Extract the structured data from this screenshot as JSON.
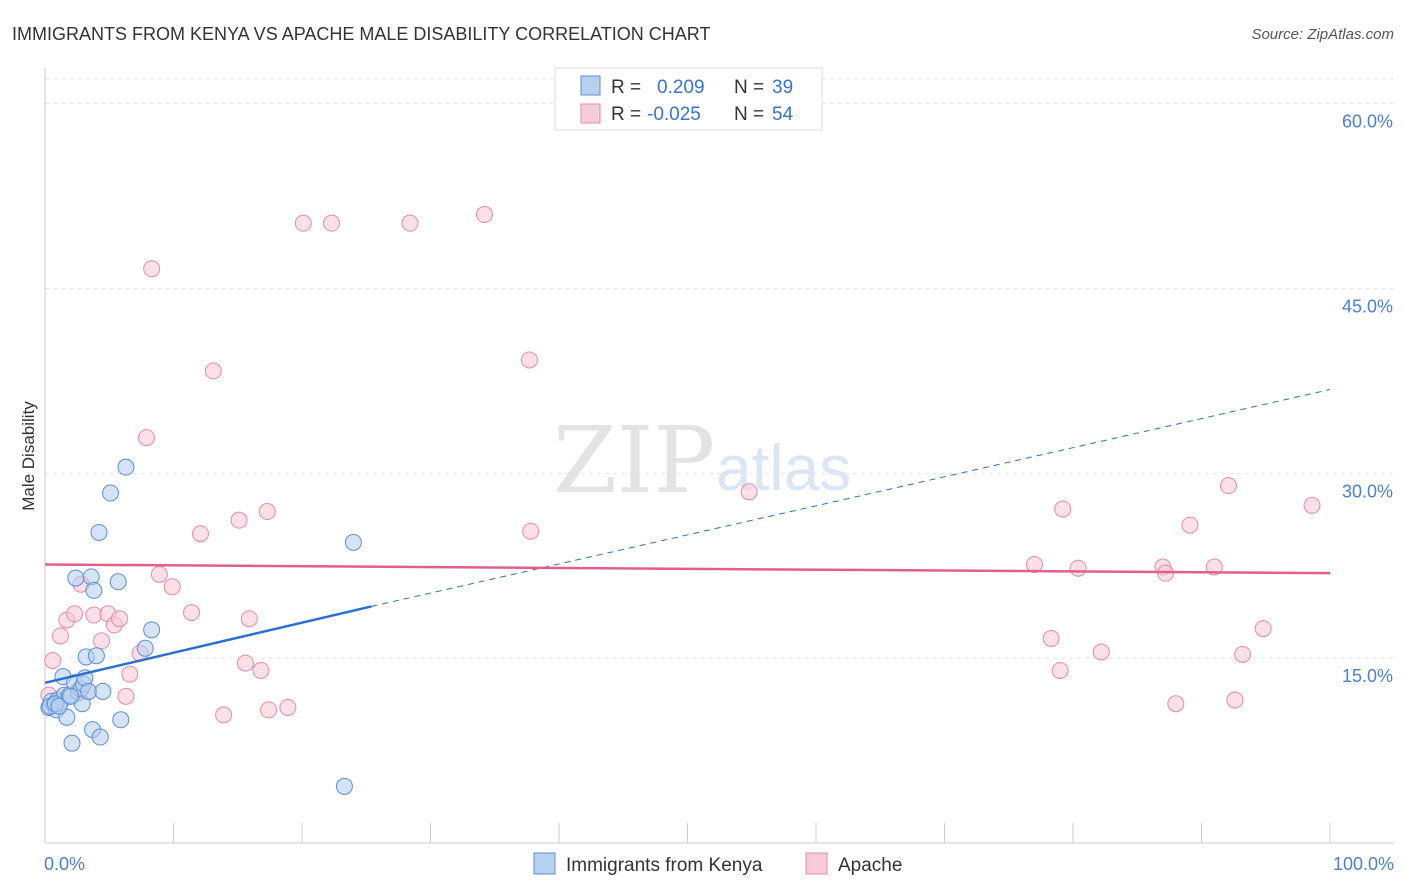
{
  "chart_data": {
    "type": "scatter",
    "title": "IMMIGRANTS FROM KENYA VS APACHE MALE DISABILITY CORRELATION CHART",
    "source": "Source: ZipAtlas.com",
    "xlabel": "",
    "ylabel": "Male Disability",
    "xlim": [
      0,
      100
    ],
    "ylim": [
      0,
      62
    ],
    "x_tick_labels": [
      "0.0%",
      "100.0%"
    ],
    "y_ticks": [
      15,
      30,
      45,
      60
    ],
    "y_tick_labels": [
      "15.0%",
      "30.0%",
      "45.0%",
      "60.0%"
    ],
    "grid": true,
    "watermark": {
      "zip": "ZIP",
      "atlas": "atlas"
    },
    "legend": {
      "stats": [
        {
          "r_label": "R =",
          "r_value": "0.209",
          "n_label": "N =",
          "n_value": "39"
        },
        {
          "r_label": "R =",
          "r_value": "-0.025",
          "n_label": "N =",
          "n_value": "54"
        }
      ],
      "bottom": [
        "Immigrants from Kenya",
        "Apache"
      ]
    },
    "series": [
      {
        "name": "Immigrants from Kenya",
        "color": "#5b8fd6",
        "fill": "#b8d0f0",
        "trend_color": "#2a6fd0",
        "trend": {
          "x0": 0,
          "y0": 13.0,
          "x1": 25.4,
          "y1": 19.2,
          "x_dash_end": 100,
          "y_dash_end": 36.8
        },
        "points": [
          [
            0.3,
            11.0
          ],
          [
            0.5,
            11.5
          ],
          [
            0.7,
            11.2
          ],
          [
            0.9,
            10.8
          ],
          [
            1.0,
            11.6
          ],
          [
            1.2,
            11.4
          ],
          [
            1.4,
            13.5
          ],
          [
            1.5,
            12.0
          ],
          [
            1.7,
            10.2
          ],
          [
            1.9,
            12.0
          ],
          [
            2.1,
            8.1
          ],
          [
            2.3,
            13.0
          ],
          [
            2.4,
            21.5
          ],
          [
            2.6,
            12.2
          ],
          [
            2.8,
            12.5
          ],
          [
            2.9,
            11.3
          ],
          [
            3.0,
            12.9
          ],
          [
            3.1,
            13.4
          ],
          [
            3.2,
            15.1
          ],
          [
            3.4,
            12.3
          ],
          [
            3.6,
            21.6
          ],
          [
            3.7,
            9.2
          ],
          [
            3.8,
            20.5
          ],
          [
            4.0,
            15.2
          ],
          [
            4.2,
            25.2
          ],
          [
            4.3,
            8.6
          ],
          [
            4.5,
            12.3
          ],
          [
            5.1,
            28.4
          ],
          [
            5.7,
            21.2
          ],
          [
            5.9,
            10.0
          ],
          [
            6.3,
            30.5
          ],
          [
            7.8,
            15.8
          ],
          [
            8.3,
            17.3
          ],
          [
            24.0,
            24.4
          ],
          [
            23.3,
            4.6
          ],
          [
            0.4,
            11.1
          ],
          [
            0.8,
            11.3
          ],
          [
            1.1,
            11.1
          ],
          [
            2.0,
            11.9
          ]
        ]
      },
      {
        "name": "Apache",
        "color": "#e88aa6",
        "fill": "#f8cbd8",
        "trend_color": "#e0608a",
        "trend": {
          "x0": 0,
          "y0": 22.6,
          "x1": 100,
          "y1": 21.9
        },
        "points": [
          [
            0.3,
            12.0
          ],
          [
            0.6,
            14.8
          ],
          [
            1.2,
            16.8
          ],
          [
            1.7,
            18.1
          ],
          [
            2.3,
            18.6
          ],
          [
            2.6,
            12.4
          ],
          [
            2.8,
            21.0
          ],
          [
            3.4,
            12.3
          ],
          [
            3.8,
            18.5
          ],
          [
            4.4,
            16.4
          ],
          [
            4.9,
            18.6
          ],
          [
            5.4,
            17.7
          ],
          [
            5.8,
            18.2
          ],
          [
            6.3,
            11.9
          ],
          [
            6.6,
            13.7
          ],
          [
            7.4,
            15.4
          ],
          [
            7.9,
            32.9
          ],
          [
            8.3,
            46.6
          ],
          [
            8.9,
            21.8
          ],
          [
            9.9,
            20.8
          ],
          [
            11.4,
            18.7
          ],
          [
            12.1,
            25.1
          ],
          [
            13.1,
            38.3
          ],
          [
            13.9,
            10.4
          ],
          [
            15.1,
            26.2
          ],
          [
            15.6,
            14.6
          ],
          [
            15.9,
            18.2
          ],
          [
            16.8,
            14.0
          ],
          [
            17.3,
            26.9
          ],
          [
            17.4,
            10.8
          ],
          [
            18.9,
            11.0
          ],
          [
            20.1,
            50.3
          ],
          [
            22.3,
            50.3
          ],
          [
            28.4,
            50.3
          ],
          [
            34.2,
            51.0
          ],
          [
            37.7,
            39.2
          ],
          [
            37.8,
            25.3
          ],
          [
            54.8,
            28.5
          ],
          [
            77.0,
            22.6
          ],
          [
            78.3,
            16.6
          ],
          [
            79.0,
            14.0
          ],
          [
            79.2,
            27.1
          ],
          [
            80.4,
            22.3
          ],
          [
            82.2,
            15.5
          ],
          [
            87.0,
            22.4
          ],
          [
            87.2,
            21.9
          ],
          [
            88.0,
            11.3
          ],
          [
            89.1,
            25.8
          ],
          [
            91.0,
            22.4
          ],
          [
            92.1,
            29.0
          ],
          [
            92.6,
            11.6
          ],
          [
            93.2,
            15.3
          ],
          [
            94.8,
            17.4
          ],
          [
            98.6,
            27.4
          ]
        ]
      }
    ]
  }
}
